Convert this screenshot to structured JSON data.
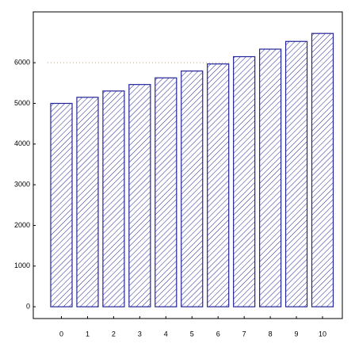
{
  "chart_data": {
    "type": "bar",
    "categories": [
      "0",
      "1",
      "2",
      "3",
      "4",
      "5",
      "6",
      "7",
      "8",
      "9",
      "10"
    ],
    "values": [
      5000,
      5150,
      5305,
      5464,
      5628,
      5796,
      5970,
      6149,
      6334,
      6524,
      6720
    ],
    "color": "#23239a",
    "ylim": [
      -290,
      7250
    ],
    "yticks": [
      0,
      1000,
      2000,
      3000,
      4000,
      5000,
      6000
    ],
    "reference_line": 6000,
    "reference_color": "#b8a898"
  }
}
